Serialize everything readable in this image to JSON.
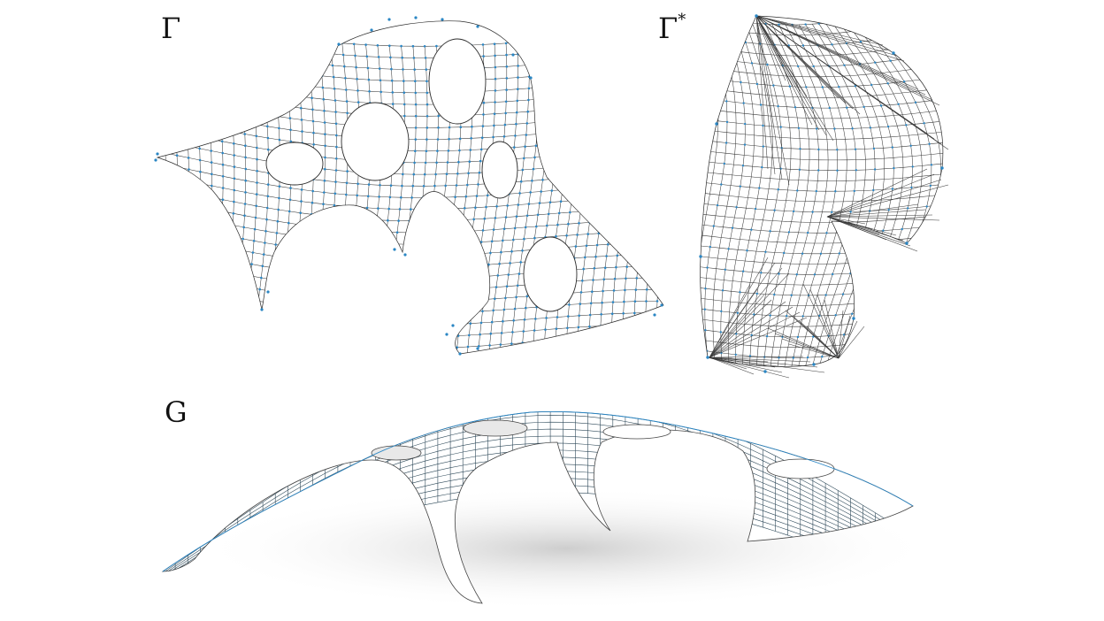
{
  "labels": {
    "form_diagram": "Γ",
    "force_diagram_base": "Γ",
    "force_diagram_sup": "*",
    "shell": "G"
  },
  "colors": {
    "node": "#2a86c4",
    "edge": "#2b2b2b",
    "background": "#ffffff"
  }
}
